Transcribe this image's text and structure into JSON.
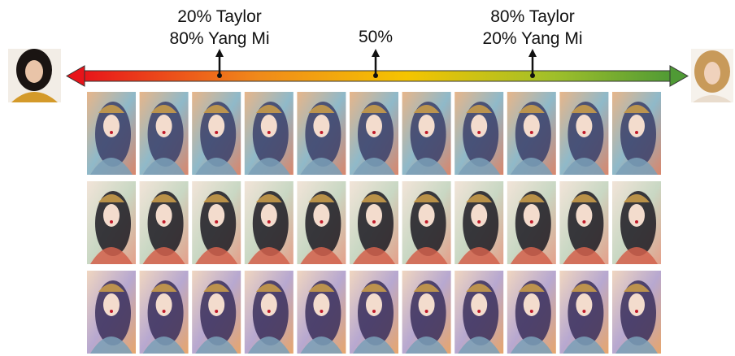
{
  "annotations": [
    {
      "lines": [
        "20% Taylor",
        "80% Yang Mi"
      ]
    },
    {
      "lines": [
        "50%"
      ]
    },
    {
      "lines": [
        "80% Taylor",
        "20% Yang Mi"
      ]
    }
  ]
}
